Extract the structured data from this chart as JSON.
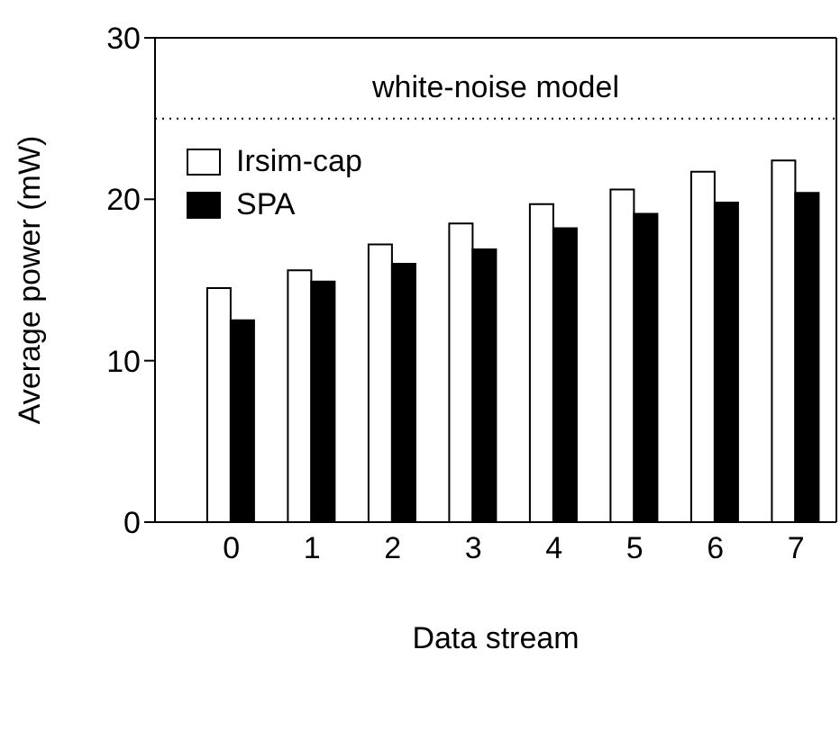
{
  "chart_data": {
    "type": "bar",
    "xlabel": "Data stream",
    "ylabel": "Average power (mW)",
    "categories": [
      "0",
      "1",
      "2",
      "3",
      "4",
      "5",
      "6",
      "7"
    ],
    "series": [
      {
        "name": "Irsim-cap",
        "color": "#ffffff",
        "values": [
          14.5,
          15.6,
          17.2,
          18.5,
          19.7,
          20.6,
          21.7,
          22.4
        ]
      },
      {
        "name": "SPA",
        "color": "#000000",
        "values": [
          12.5,
          14.9,
          16.0,
          16.9,
          18.2,
          19.1,
          19.8,
          20.4
        ]
      }
    ],
    "ylim": [
      0,
      30
    ],
    "yticks": [
      0,
      10,
      20,
      30
    ],
    "grid": false,
    "legend": "top left",
    "ref_lines": [
      {
        "axis": "y",
        "value": 25,
        "label": "white-noise model",
        "line_style": "dotted",
        "color": "#000000"
      }
    ]
  }
}
